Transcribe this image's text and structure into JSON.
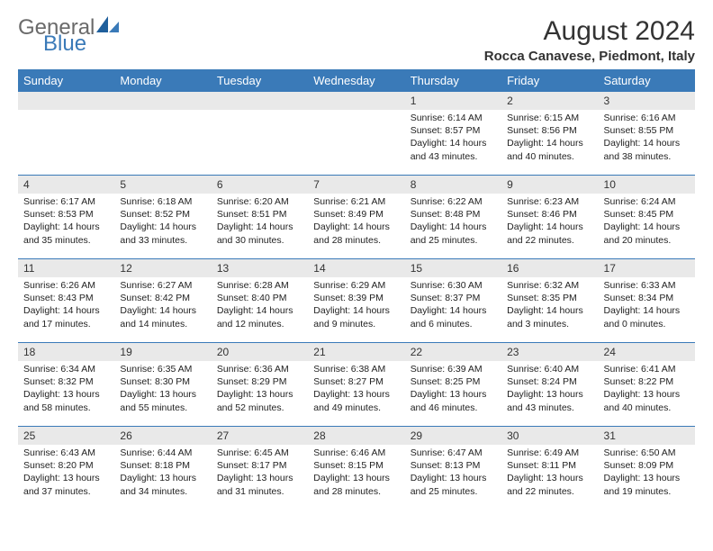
{
  "logo": {
    "line1": "General",
    "line2": "Blue"
  },
  "title": "August 2024",
  "subtitle": "Rocca Canavese, Piedmont, Italy",
  "colors": {
    "header_bg": "#3a7ab8",
    "header_text": "#ffffff",
    "daynum_bg": "#e9e9e9",
    "border": "#3a7ab8",
    "logo_gray": "#6a6a6a",
    "logo_blue": "#3a7ab8"
  },
  "day_header_names": [
    "Sunday",
    "Monday",
    "Tuesday",
    "Wednesday",
    "Thursday",
    "Friday",
    "Saturday"
  ],
  "weeks": [
    [
      {
        "num": "",
        "sunrise": "",
        "sunset": "",
        "daylight": ""
      },
      {
        "num": "",
        "sunrise": "",
        "sunset": "",
        "daylight": ""
      },
      {
        "num": "",
        "sunrise": "",
        "sunset": "",
        "daylight": ""
      },
      {
        "num": "",
        "sunrise": "",
        "sunset": "",
        "daylight": ""
      },
      {
        "num": "1",
        "sunrise": "Sunrise: 6:14 AM",
        "sunset": "Sunset: 8:57 PM",
        "daylight": "Daylight: 14 hours and 43 minutes."
      },
      {
        "num": "2",
        "sunrise": "Sunrise: 6:15 AM",
        "sunset": "Sunset: 8:56 PM",
        "daylight": "Daylight: 14 hours and 40 minutes."
      },
      {
        "num": "3",
        "sunrise": "Sunrise: 6:16 AM",
        "sunset": "Sunset: 8:55 PM",
        "daylight": "Daylight: 14 hours and 38 minutes."
      }
    ],
    [
      {
        "num": "4",
        "sunrise": "Sunrise: 6:17 AM",
        "sunset": "Sunset: 8:53 PM",
        "daylight": "Daylight: 14 hours and 35 minutes."
      },
      {
        "num": "5",
        "sunrise": "Sunrise: 6:18 AM",
        "sunset": "Sunset: 8:52 PM",
        "daylight": "Daylight: 14 hours and 33 minutes."
      },
      {
        "num": "6",
        "sunrise": "Sunrise: 6:20 AM",
        "sunset": "Sunset: 8:51 PM",
        "daylight": "Daylight: 14 hours and 30 minutes."
      },
      {
        "num": "7",
        "sunrise": "Sunrise: 6:21 AM",
        "sunset": "Sunset: 8:49 PM",
        "daylight": "Daylight: 14 hours and 28 minutes."
      },
      {
        "num": "8",
        "sunrise": "Sunrise: 6:22 AM",
        "sunset": "Sunset: 8:48 PM",
        "daylight": "Daylight: 14 hours and 25 minutes."
      },
      {
        "num": "9",
        "sunrise": "Sunrise: 6:23 AM",
        "sunset": "Sunset: 8:46 PM",
        "daylight": "Daylight: 14 hours and 22 minutes."
      },
      {
        "num": "10",
        "sunrise": "Sunrise: 6:24 AM",
        "sunset": "Sunset: 8:45 PM",
        "daylight": "Daylight: 14 hours and 20 minutes."
      }
    ],
    [
      {
        "num": "11",
        "sunrise": "Sunrise: 6:26 AM",
        "sunset": "Sunset: 8:43 PM",
        "daylight": "Daylight: 14 hours and 17 minutes."
      },
      {
        "num": "12",
        "sunrise": "Sunrise: 6:27 AM",
        "sunset": "Sunset: 8:42 PM",
        "daylight": "Daylight: 14 hours and 14 minutes."
      },
      {
        "num": "13",
        "sunrise": "Sunrise: 6:28 AM",
        "sunset": "Sunset: 8:40 PM",
        "daylight": "Daylight: 14 hours and 12 minutes."
      },
      {
        "num": "14",
        "sunrise": "Sunrise: 6:29 AM",
        "sunset": "Sunset: 8:39 PM",
        "daylight": "Daylight: 14 hours and 9 minutes."
      },
      {
        "num": "15",
        "sunrise": "Sunrise: 6:30 AM",
        "sunset": "Sunset: 8:37 PM",
        "daylight": "Daylight: 14 hours and 6 minutes."
      },
      {
        "num": "16",
        "sunrise": "Sunrise: 6:32 AM",
        "sunset": "Sunset: 8:35 PM",
        "daylight": "Daylight: 14 hours and 3 minutes."
      },
      {
        "num": "17",
        "sunrise": "Sunrise: 6:33 AM",
        "sunset": "Sunset: 8:34 PM",
        "daylight": "Daylight: 14 hours and 0 minutes."
      }
    ],
    [
      {
        "num": "18",
        "sunrise": "Sunrise: 6:34 AM",
        "sunset": "Sunset: 8:32 PM",
        "daylight": "Daylight: 13 hours and 58 minutes."
      },
      {
        "num": "19",
        "sunrise": "Sunrise: 6:35 AM",
        "sunset": "Sunset: 8:30 PM",
        "daylight": "Daylight: 13 hours and 55 minutes."
      },
      {
        "num": "20",
        "sunrise": "Sunrise: 6:36 AM",
        "sunset": "Sunset: 8:29 PM",
        "daylight": "Daylight: 13 hours and 52 minutes."
      },
      {
        "num": "21",
        "sunrise": "Sunrise: 6:38 AM",
        "sunset": "Sunset: 8:27 PM",
        "daylight": "Daylight: 13 hours and 49 minutes."
      },
      {
        "num": "22",
        "sunrise": "Sunrise: 6:39 AM",
        "sunset": "Sunset: 8:25 PM",
        "daylight": "Daylight: 13 hours and 46 minutes."
      },
      {
        "num": "23",
        "sunrise": "Sunrise: 6:40 AM",
        "sunset": "Sunset: 8:24 PM",
        "daylight": "Daylight: 13 hours and 43 minutes."
      },
      {
        "num": "24",
        "sunrise": "Sunrise: 6:41 AM",
        "sunset": "Sunset: 8:22 PM",
        "daylight": "Daylight: 13 hours and 40 minutes."
      }
    ],
    [
      {
        "num": "25",
        "sunrise": "Sunrise: 6:43 AM",
        "sunset": "Sunset: 8:20 PM",
        "daylight": "Daylight: 13 hours and 37 minutes."
      },
      {
        "num": "26",
        "sunrise": "Sunrise: 6:44 AM",
        "sunset": "Sunset: 8:18 PM",
        "daylight": "Daylight: 13 hours and 34 minutes."
      },
      {
        "num": "27",
        "sunrise": "Sunrise: 6:45 AM",
        "sunset": "Sunset: 8:17 PM",
        "daylight": "Daylight: 13 hours and 31 minutes."
      },
      {
        "num": "28",
        "sunrise": "Sunrise: 6:46 AM",
        "sunset": "Sunset: 8:15 PM",
        "daylight": "Daylight: 13 hours and 28 minutes."
      },
      {
        "num": "29",
        "sunrise": "Sunrise: 6:47 AM",
        "sunset": "Sunset: 8:13 PM",
        "daylight": "Daylight: 13 hours and 25 minutes."
      },
      {
        "num": "30",
        "sunrise": "Sunrise: 6:49 AM",
        "sunset": "Sunset: 8:11 PM",
        "daylight": "Daylight: 13 hours and 22 minutes."
      },
      {
        "num": "31",
        "sunrise": "Sunrise: 6:50 AM",
        "sunset": "Sunset: 8:09 PM",
        "daylight": "Daylight: 13 hours and 19 minutes."
      }
    ]
  ]
}
